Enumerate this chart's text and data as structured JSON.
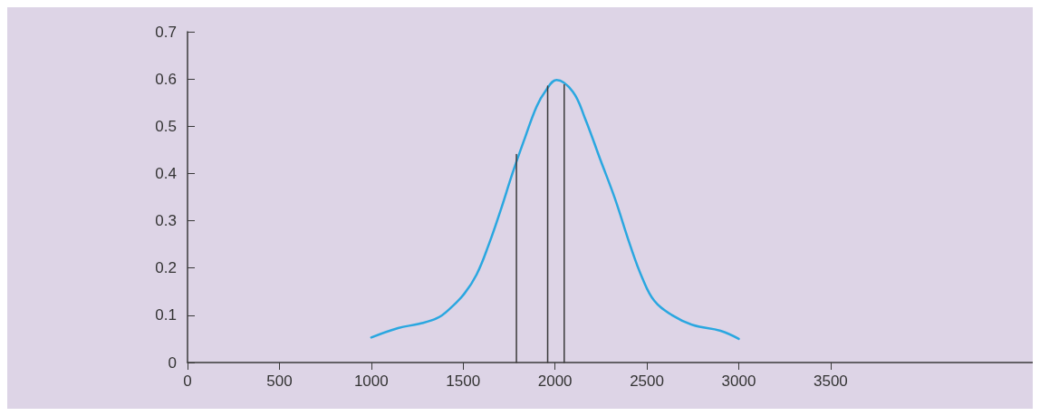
{
  "chart_data": {
    "type": "line",
    "series": [
      {
        "color": "#2aa7e0",
        "x": [
          1000,
          1146,
          1261,
          1359,
          1425,
          1507,
          1573,
          1638,
          1703,
          1769,
          1835,
          1900,
          1949,
          2008,
          2097,
          2163,
          2245,
          2327,
          2409,
          2474,
          2540,
          2638,
          2753,
          2901,
          3000
        ],
        "values": [
          0.053,
          0.073,
          0.082,
          0.094,
          0.113,
          0.146,
          0.186,
          0.248,
          0.321,
          0.401,
          0.474,
          0.542,
          0.575,
          0.598,
          0.573,
          0.517,
          0.431,
          0.346,
          0.248,
          0.18,
          0.131,
          0.1,
          0.079,
          0.067,
          0.05
        ]
      },
      {
        "color": "#3a3a3a",
        "x": [
          1790,
          1790
        ],
        "values": [
          0,
          0.44
        ]
      },
      {
        "color": "#3a3a3a",
        "x": [
          1960,
          1960
        ],
        "values": [
          0,
          0.585
        ]
      },
      {
        "color": "#3a3a3a",
        "x": [
          2050,
          2050
        ],
        "values": [
          0,
          0.588
        ]
      }
    ],
    "xlim": [
      0,
      4600
    ],
    "xticks": [
      0,
      500,
      1000,
      1500,
      2000,
      2500,
      3000,
      3500
    ],
    "ylim": [
      0,
      0.7
    ],
    "yticks": [
      0,
      0.1,
      0.2,
      0.3,
      0.4,
      0.5,
      0.6,
      0.7
    ],
    "marker": "none",
    "line_style": "solid"
  }
}
